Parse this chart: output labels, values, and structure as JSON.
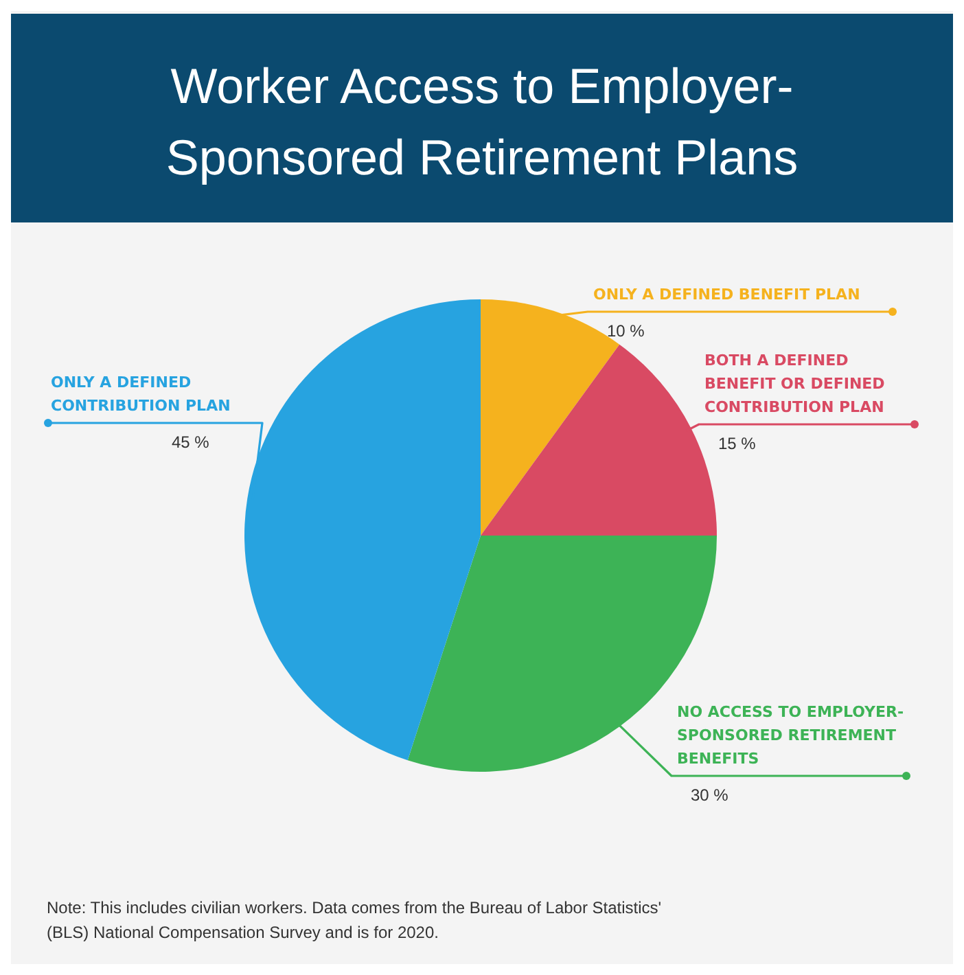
{
  "chart_data": {
    "type": "pie",
    "title": "Worker Access to Employer-Sponsored Retirement Plans",
    "categories": [
      "ONLY A DEFINED BENEFIT PLAN",
      "BOTH A DEFINED BENEFIT OR DEFINED CONTRIBUTION PLAN",
      "NO ACCESS TO EMPLOYER-SPONSORED RETIREMENT BENEFITS",
      "ONLY A DEFINED CONTRIBUTION PLAN"
    ],
    "values": [
      10,
      15,
      30,
      45
    ],
    "value_labels": [
      "10 %",
      "15 %",
      "30 %",
      "45 %"
    ],
    "colors": [
      "#f5b21e",
      "#d94a63",
      "#3db356",
      "#27a3e0"
    ],
    "annotations": [
      "Note: This includes civilian workers. Data comes from the Bureau of Labor Statistics' (BLS) National Compensation Survey and is for 2020."
    ]
  }
}
